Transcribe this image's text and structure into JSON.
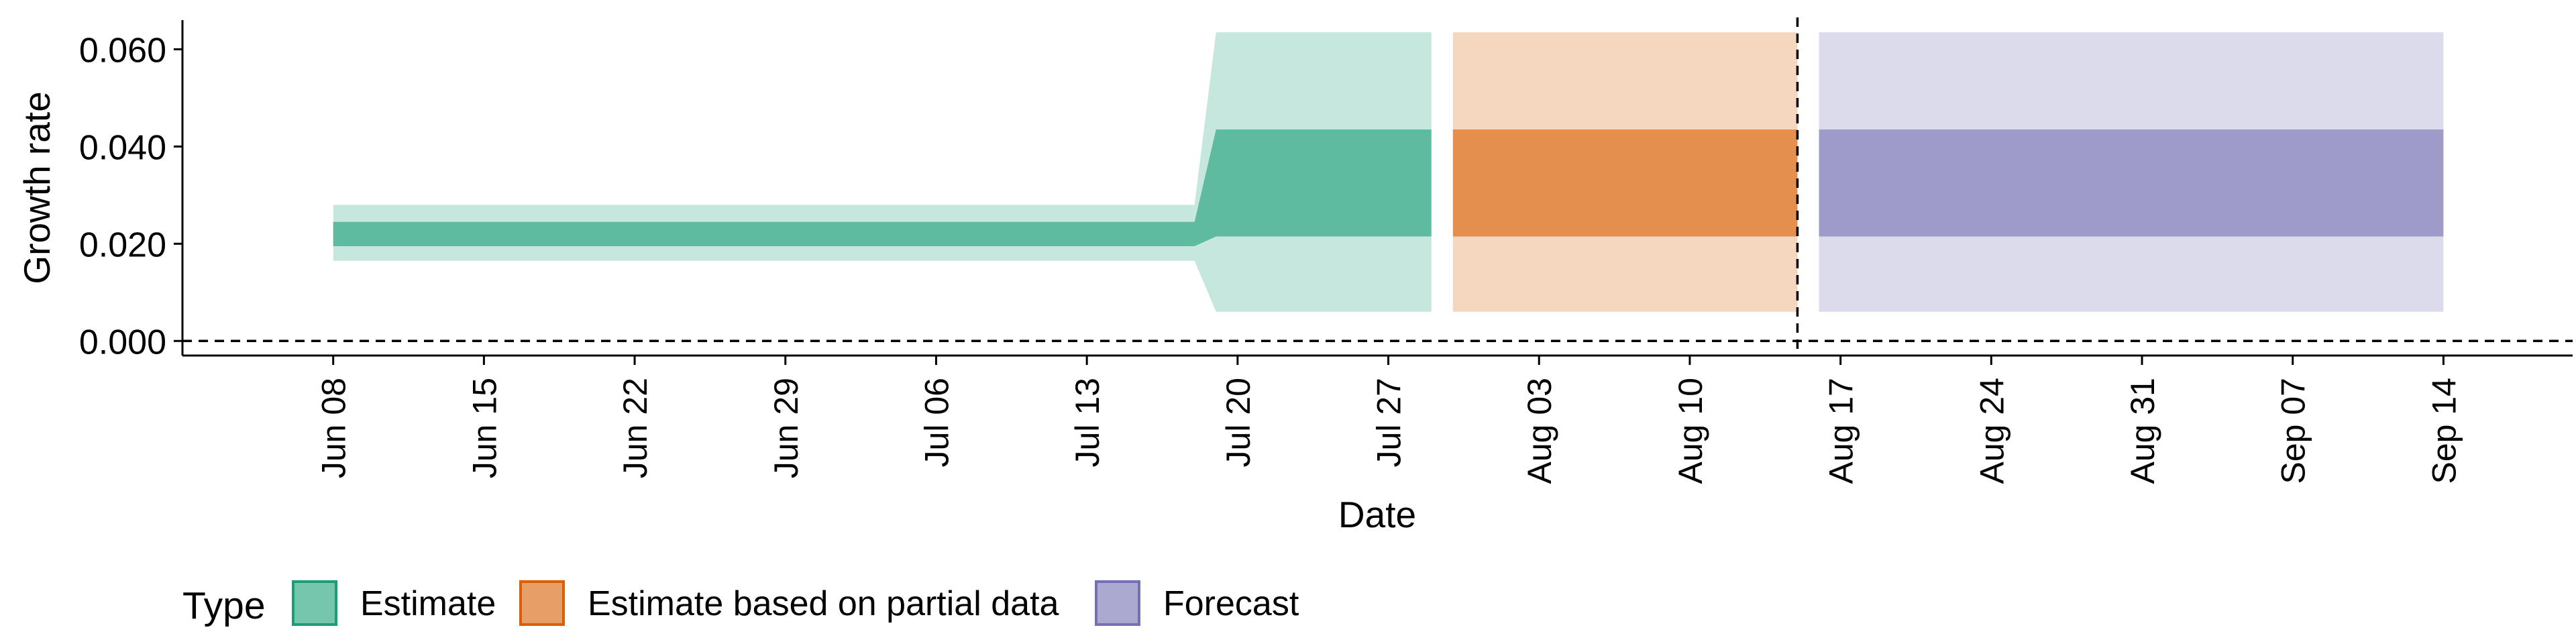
{
  "chart_data": {
    "type": "area",
    "title": "",
    "xlabel": "Date",
    "ylabel": "Growth rate",
    "x_type": "date",
    "xlim": [
      "2020-06-01",
      "2020-09-20"
    ],
    "ylim": [
      -0.003,
      0.066
    ],
    "x_ticks": [
      "2020-06-08",
      "2020-06-15",
      "2020-06-22",
      "2020-06-29",
      "2020-07-06",
      "2020-07-13",
      "2020-07-20",
      "2020-07-27",
      "2020-08-03",
      "2020-08-10",
      "2020-08-17",
      "2020-08-24",
      "2020-08-31",
      "2020-09-07",
      "2020-09-14"
    ],
    "x_tick_labels": [
      "Jun 08",
      "Jun 15",
      "Jun 22",
      "Jun 29",
      "Jul 06",
      "Jul 13",
      "Jul 20",
      "Jul 27",
      "Aug 03",
      "Aug 10",
      "Aug 17",
      "Aug 24",
      "Aug 31",
      "Sep 07",
      "Sep 14"
    ],
    "y_ticks": [
      0,
      0.02,
      0.04,
      0.06
    ],
    "y_tick_labels": [
      "0.000",
      "0.020",
      "0.040",
      "0.060"
    ],
    "reference_lines": [
      {
        "axis": "y",
        "value": 0,
        "style": "dashed"
      },
      {
        "axis": "x",
        "value": "2020-08-15",
        "style": "dashed"
      }
    ],
    "legend": {
      "title": "Type",
      "position": "bottom-left",
      "entries": [
        "Estimate",
        "Estimate based on partial data",
        "Forecast"
      ]
    },
    "series": [
      {
        "name": "Estimate",
        "color": "#1b9e77",
        "x": [
          "2020-06-08",
          "2020-07-18",
          "2020-07-19",
          "2020-07-20",
          "2020-07-29"
        ],
        "inner_lower": [
          0.0195,
          0.0195,
          0.0215,
          0.0215,
          0.0215
        ],
        "inner_upper": [
          0.0245,
          0.0245,
          0.0435,
          0.0435,
          0.0435
        ],
        "outer_lower": [
          0.0165,
          0.0165,
          0.006,
          0.006,
          0.006
        ],
        "outer_upper": [
          0.028,
          0.028,
          0.0635,
          0.0635,
          0.0635
        ]
      },
      {
        "name": "Estimate based on partial data",
        "color": "#d95f02",
        "x": [
          "2020-07-30",
          "2020-08-15"
        ],
        "inner_lower": [
          0.0215,
          0.0215
        ],
        "inner_upper": [
          0.0435,
          0.0435
        ],
        "outer_lower": [
          0.006,
          0.006
        ],
        "outer_upper": [
          0.0635,
          0.0635
        ]
      },
      {
        "name": "Forecast",
        "color": "#7570b3",
        "x": [
          "2020-08-16",
          "2020-09-14"
        ],
        "inner_lower": [
          0.0215,
          0.0215
        ],
        "inner_upper": [
          0.0435,
          0.0435
        ],
        "outer_lower": [
          0.006,
          0.006
        ],
        "outer_upper": [
          0.0635,
          0.0635
        ]
      }
    ]
  }
}
